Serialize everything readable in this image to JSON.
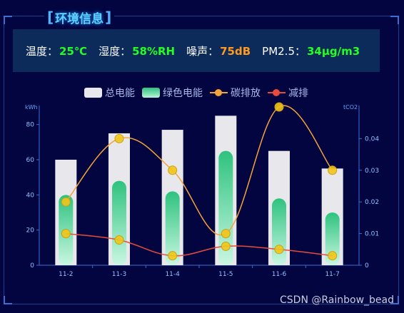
{
  "panel": {
    "bracket_left": "[",
    "title": "环境信息",
    "bracket_right": "]"
  },
  "environment": [
    {
      "label": "温度：",
      "value": "25℃",
      "color": "#22ff22"
    },
    {
      "label": "湿度：",
      "value": "58%RH",
      "color": "#22ff22"
    },
    {
      "label": "噪声：",
      "value": "75dB",
      "color": "#ff9a1f"
    },
    {
      "label": "PM2.5：",
      "value": "34μg/m3",
      "color": "#22ff22"
    }
  ],
  "chart_data": {
    "type": "bar",
    "categories": [
      "11-2",
      "11-3",
      "11-4",
      "11-5",
      "11-6",
      "11-7"
    ],
    "yleft": {
      "unit": "kWh",
      "min": 0,
      "max": 90,
      "ticks": [
        0,
        20,
        40,
        60,
        80
      ]
    },
    "yright": {
      "unit": "tCO2",
      "min": 0,
      "max": 0.05,
      "ticks": [
        0,
        0.01,
        0.02,
        0.03,
        0.04
      ]
    },
    "legend_position": "top",
    "grid": false,
    "series": [
      {
        "name": "总电能",
        "kind": "bar",
        "axis": "left",
        "color": "#e8e8ec",
        "values": [
          60,
          75,
          77,
          85,
          65,
          55
        ]
      },
      {
        "name": "绿色电能",
        "kind": "bar",
        "axis": "left",
        "color": "#2ec27e",
        "values": [
          40,
          48,
          42,
          65,
          38,
          30
        ]
      },
      {
        "name": "碳排放",
        "kind": "line",
        "axis": "right",
        "color": "#f5a43a",
        "values": [
          0.02,
          0.04,
          0.03,
          0.01,
          0.05,
          0.03
        ]
      },
      {
        "name": "减排",
        "kind": "line",
        "axis": "right",
        "color": "#e84a3c",
        "values": [
          0.01,
          0.008,
          0.003,
          0.006,
          0.005,
          0.003
        ]
      }
    ]
  },
  "watermark": "CSDN @Rainbow_bead"
}
